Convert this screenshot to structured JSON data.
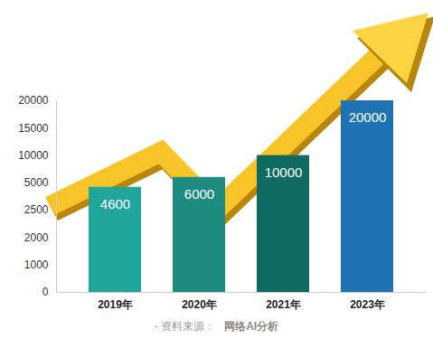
{
  "chart_data": {
    "type": "bar",
    "categories": [
      "2019年",
      "2020年",
      "2021年",
      "2023年"
    ],
    "values": [
      4600,
      6000,
      10000,
      20000
    ],
    "colors": [
      "#1fa59a",
      "#1e8b80",
      "#0f6b60",
      "#1e73b4"
    ],
    "ylim": [
      0,
      20000
    ],
    "yticks": [
      0,
      1000,
      2000,
      2500,
      5000,
      10000,
      15000,
      20000
    ],
    "data_labels": true,
    "grid": false,
    "source_label": "- 资料来源：",
    "source": "网络AI分析"
  }
}
